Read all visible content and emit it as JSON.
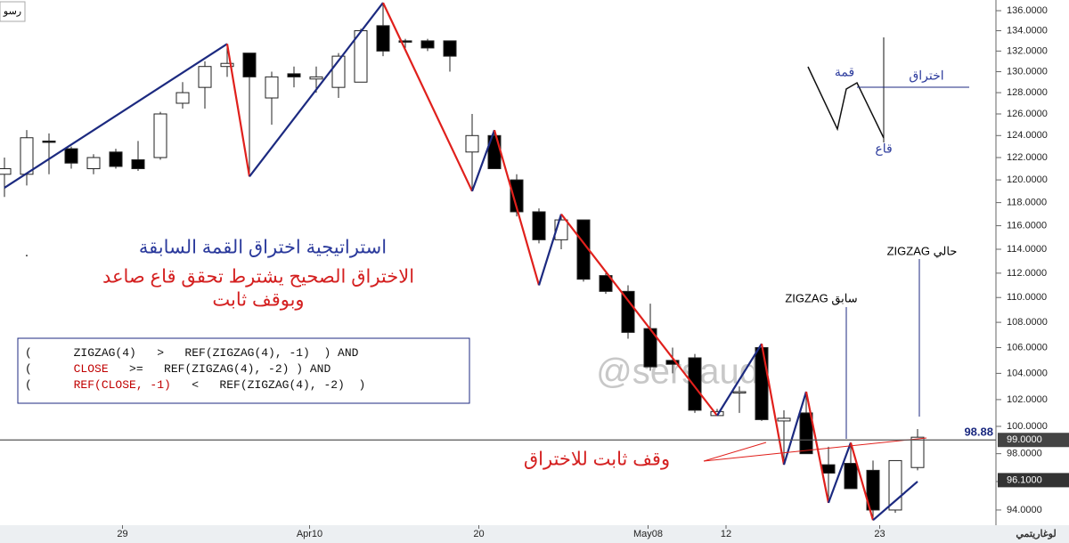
{
  "chart_data": {
    "type": "candlestick",
    "log_scale": true,
    "corner_label": "رسو",
    "scale_label": "لوغاريتمي",
    "title": "استراتيجية اختراق القمة السابقة",
    "title_mark": ".",
    "subtitle_lines": [
      "الاختراق الصحيح يشترط تحقق قاع صاعد",
      "وبوقف ثابت"
    ],
    "watermark": "@sersaudi",
    "code_lines": [
      [
        {
          "text": "(      ZIGZAG(4)   >   REF(ZIGZAG(4), -1)  ) AND",
          "color": "#111"
        }
      ],
      [
        {
          "text": "(      ",
          "color": "#111"
        },
        {
          "text": "CLOSE",
          "color": "#c00000"
        },
        {
          "text": "   >=   REF(ZIGZAG(4), -2) ) AND",
          "color": "#111"
        }
      ],
      [
        {
          "text": "(      ",
          "color": "#111"
        },
        {
          "text": "REF(CLOSE, -1)",
          "color": "#c00000"
        },
        {
          "text": "   <   REF(ZIGZAG(4), -2)  )",
          "color": "#111"
        }
      ]
    ],
    "annotations": {
      "current_zigzag": "ZIGZAG حالي",
      "previous_zigzag": "ZIGZAG سابق",
      "fixed_stop": "وقف ثابت للاختراق"
    },
    "inset_labels": {
      "peak": "قمة",
      "breakout": "اختراق",
      "trough": "قاع"
    },
    "xlim": [
      -0.2,
      44.52
    ],
    "ylim": [
      92.95,
      137.08
    ],
    "xticks": [
      {
        "value": 5.3,
        "label": "29"
      },
      {
        "value": 13.7,
        "label": "Apr10"
      },
      {
        "value": 21.3,
        "label": "20"
      },
      {
        "value": 28.9,
        "label": "May08"
      },
      {
        "value": 32.4,
        "label": "12"
      },
      {
        "value": 39.3,
        "label": "23"
      }
    ],
    "yticks": [
      {
        "value": 94,
        "label": "94.0000"
      },
      {
        "value": 96,
        "label": "96.0000"
      },
      {
        "value": 98,
        "label": "98.0000"
      },
      {
        "value": 100,
        "label": "100.0000"
      },
      {
        "value": 102,
        "label": "102.0000"
      },
      {
        "value": 104,
        "label": "104.0000"
      },
      {
        "value": 106,
        "label": "106.0000"
      },
      {
        "value": 108,
        "label": "108.0000"
      },
      {
        "value": 110,
        "label": "110.0000"
      },
      {
        "value": 112,
        "label": "112.0000"
      },
      {
        "value": 114,
        "label": "114.0000"
      },
      {
        "value": 116,
        "label": "116.0000"
      },
      {
        "value": 118,
        "label": "118.0000"
      },
      {
        "value": 120,
        "label": "120.0000"
      },
      {
        "value": 122,
        "label": "122.0000"
      },
      {
        "value": 124,
        "label": "124.0000"
      },
      {
        "value": 126,
        "label": "126.0000"
      },
      {
        "value": 128,
        "label": "128.0000"
      },
      {
        "value": 130,
        "label": "130.0000"
      },
      {
        "value": 132,
        "label": "132.0000"
      },
      {
        "value": 134,
        "label": "134.0000"
      },
      {
        "value": 136,
        "label": "136.0000"
      }
    ],
    "open": [
      120.5,
      120.5,
      123.5,
      122.8,
      121,
      122.5,
      121.8,
      122,
      127,
      128.5,
      130.5,
      131.8,
      127.5,
      129.8,
      129.3,
      128.5,
      129,
      134.5,
      133,
      133,
      133,
      122.5,
      124,
      120,
      117.2,
      114.8,
      116.5,
      111.8,
      110.5,
      107.5,
      105,
      105.2,
      100.8,
      102.5,
      106,
      100.4,
      101,
      97.2,
      97.3,
      96.8,
      94,
      97
    ],
    "high": [
      122,
      124.5,
      124.2,
      123,
      122.3,
      122.8,
      123.5,
      126.2,
      129,
      131,
      132.7,
      131.8,
      130,
      130.5,
      130.5,
      131.8,
      134.2,
      136.8,
      133.2,
      133.2,
      133,
      126,
      124.5,
      120.5,
      117.5,
      117,
      116.5,
      112,
      111,
      109.5,
      106,
      105.5,
      101.3,
      103,
      106.3,
      101.2,
      102.6,
      98.5,
      98.8,
      97.5,
      97.5,
      99.8
    ],
    "low": [
      118.5,
      119.5,
      120.5,
      121,
      120.5,
      121,
      120.8,
      121.8,
      126.5,
      126.5,
      129.5,
      120.3,
      125,
      128.5,
      128,
      127.5,
      129,
      131.5,
      132.3,
      132,
      130,
      119,
      121,
      116.8,
      114.5,
      114,
      111.3,
      110.3,
      106.7,
      104.2,
      104,
      101,
      100.8,
      101,
      100.4,
      97.2,
      98,
      94.5,
      95.5,
      93.3,
      93.8,
      96.8
    ],
    "close": [
      121,
      123.8,
      123.4,
      121.5,
      122,
      121.2,
      121,
      126,
      128,
      130.5,
      130.8,
      129.5,
      129.5,
      129.5,
      129.5,
      131.5,
      134,
      132,
      132.9,
      132.3,
      131.5,
      124,
      121,
      117.2,
      114.8,
      116.5,
      111.5,
      110.5,
      107.2,
      104.5,
      104.7,
      101.2,
      101.1,
      102.6,
      100.5,
      100.6,
      98,
      96.6,
      95.5,
      94,
      97.5,
      99.2
    ],
    "up_color": "#ffffff",
    "down_color": "#000000",
    "zigzag": {
      "x": [
        0,
        10,
        11,
        17,
        21,
        22,
        24,
        25,
        32,
        34,
        35,
        36,
        37,
        38,
        39,
        41
      ],
      "values": [
        119.3,
        132.7,
        120.3,
        136.8,
        119,
        124.5,
        111,
        117,
        100.8,
        106.3,
        97.2,
        102.6,
        94.5,
        98.8,
        93.3,
        96
      ],
      "up_color": "#1c2a80",
      "down_color": "#e0201c"
    },
    "price_line": {
      "value": 99,
      "label": "99.0000"
    },
    "last_tag": {
      "value": 96.1,
      "label": "96.1000"
    },
    "stop_level": 98.88
  }
}
